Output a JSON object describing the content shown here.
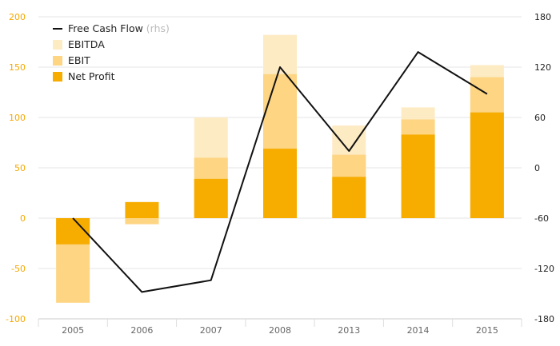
{
  "chart_data": {
    "type": "bar",
    "categories": [
      "2005",
      "2006",
      "2007",
      "2008",
      "2013",
      "2014",
      "2015"
    ],
    "series": [
      {
        "name": "EBITDA",
        "values": [
          -11,
          -6,
          100,
          182,
          92,
          110,
          152
        ]
      },
      {
        "name": "EBIT",
        "values": [
          -84,
          -6,
          60,
          143,
          63,
          98,
          140
        ]
      },
      {
        "name": "Net Profit",
        "values": [
          -26,
          16,
          39,
          69,
          41,
          83,
          105
        ]
      }
    ],
    "line_series": {
      "name": "Free Cash Flow",
      "axis_note": "(rhs)",
      "values": [
        -60,
        -148,
        -134,
        120,
        20,
        138,
        88
      ]
    },
    "left_axis": {
      "ylim": [
        -100,
        200
      ],
      "ticks": [
        "-100",
        "-50",
        "0",
        "50",
        "100",
        "150",
        "200"
      ]
    },
    "right_axis": {
      "ylim": [
        -180,
        180
      ],
      "ticks": [
        "-180",
        "-120",
        "-60",
        "0",
        "60",
        "120",
        "180"
      ]
    },
    "legend_position": "top-left",
    "grid": true,
    "colors": {
      "ebitda": "#fdebc4",
      "ebit": "#fdd583",
      "net_profit": "#f7ad00",
      "line": "#111111",
      "left_ticks": "#f5a800",
      "grid": "#e6e6e6"
    }
  }
}
